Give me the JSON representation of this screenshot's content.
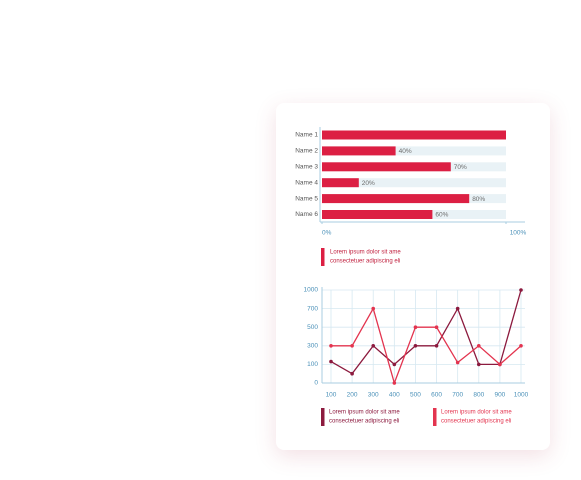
{
  "chart_data": [
    {
      "type": "hbar",
      "categories": [
        "Name 1",
        "Name 2",
        "Name 3",
        "Name 4",
        "Name 5",
        "Name 6"
      ],
      "series": [
        {
          "name": [
            "Lorem ipsum dolor sit ame",
            "consectetuer adipiscing eli"
          ],
          "color": "#dc1f43",
          "values": [
            100,
            40,
            70,
            20,
            80,
            60
          ]
        }
      ],
      "value_labels": [
        null,
        "40%",
        "70%",
        "20%",
        "80%",
        "60%"
      ],
      "track_color": "#e9f2f6",
      "xlim": [
        0,
        100
      ],
      "xticks": [
        {
          "value": 0,
          "label": "0%"
        },
        {
          "value": 100,
          "label": "100%"
        }
      ]
    },
    {
      "type": "line",
      "x": [
        100,
        200,
        300,
        400,
        500,
        600,
        700,
        800,
        900,
        1000
      ],
      "series": [
        {
          "name": [
            "Lorem ipsum dolor sit ame",
            "consectetuer adipiscing eli"
          ],
          "color": "#8c1a3e",
          "values": [
            130,
            50,
            300,
            100,
            300,
            300,
            700,
            100,
            100,
            1000
          ]
        },
        {
          "name": [
            "Lorem ipsum dolor sit ame",
            "consectetuer adipiscing eli"
          ],
          "color": "#e3344f",
          "values": [
            300,
            300,
            700,
            0,
            500,
            500,
            120,
            300,
            100,
            300
          ]
        }
      ],
      "xlim": [
        100,
        1000
      ],
      "xticks": [
        100,
        200,
        300,
        400,
        500,
        600,
        700,
        800,
        900,
        1000
      ],
      "ylim": [
        0,
        1000
      ],
      "yticks": [
        0,
        100,
        300,
        500,
        700,
        1000
      ],
      "grid": true
    }
  ]
}
